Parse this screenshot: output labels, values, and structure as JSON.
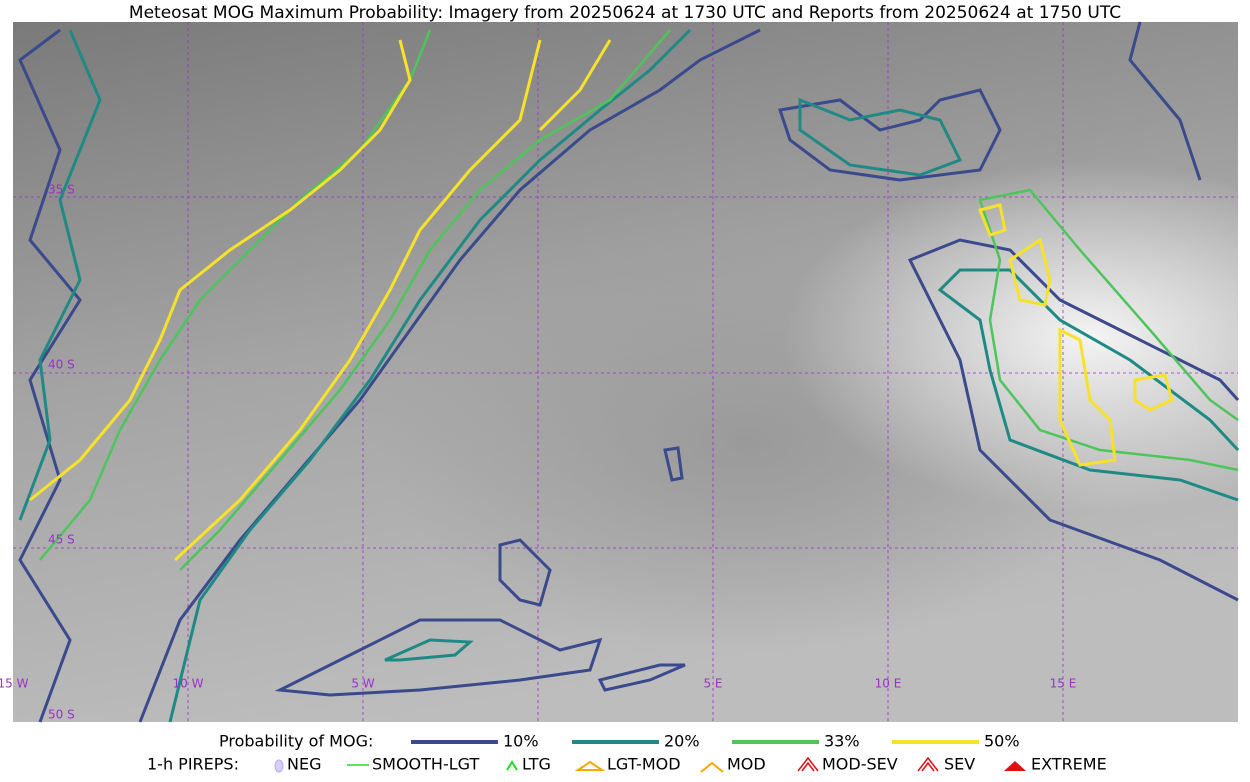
{
  "title": "Meteosat MOG Maximum Probability: Imagery from 20250624 at 1730 UTC and Reports from 20250624 at 1750 UTC",
  "map": {
    "lon_labels": [
      "15 W",
      "10 W",
      "5 W",
      "5 E",
      "10 E",
      "15 E"
    ],
    "lat_labels": [
      "35 S",
      "40 S",
      "45 S",
      "50 S"
    ]
  },
  "legend": {
    "probability_label": "Probability of MOG:",
    "levels": [
      {
        "label": "10%",
        "color": "#3a4a8c"
      },
      {
        "label": "20%",
        "color": "#1f8a84"
      },
      {
        "label": "33%",
        "color": "#4dc55a"
      },
      {
        "label": "50%",
        "color": "#f7e22a"
      }
    ],
    "pireps_label": "1-h PIREPS:",
    "pireps": [
      "NEG",
      "SMOOTH-LGT",
      "LTG",
      "LGT-MOD",
      "MOD",
      "MOD-SEV",
      "SEV",
      "EXTREME"
    ]
  }
}
